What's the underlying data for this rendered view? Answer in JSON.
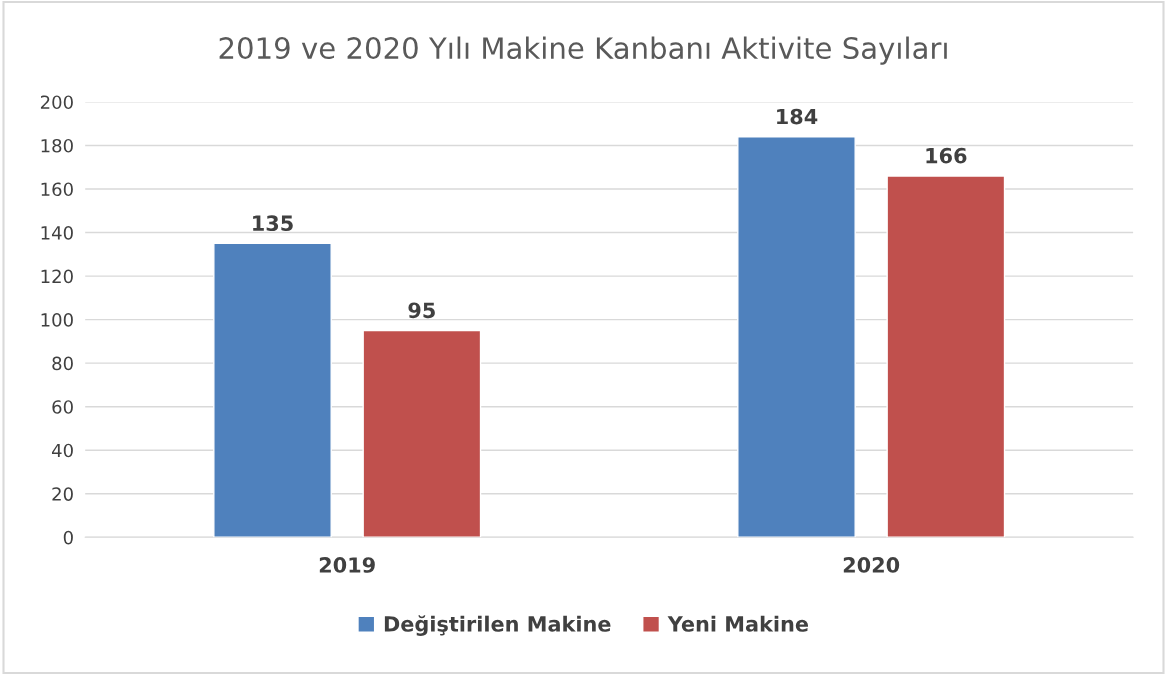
{
  "chart_data": {
    "type": "bar",
    "title": "2019 ve 2020 Yılı Makine Kanbanı Aktivite Sayıları",
    "categories": [
      "2019",
      "2020"
    ],
    "series": [
      {
        "name": "Değiştirilen Makine",
        "color": "#4f81bd",
        "values": [
          135,
          184
        ]
      },
      {
        "name": "Yeni Makine",
        "color": "#c0504d",
        "values": [
          95,
          166
        ]
      }
    ],
    "ylim": [
      0,
      200
    ],
    "yticks": [
      0,
      20,
      40,
      60,
      80,
      100,
      120,
      140,
      160,
      180,
      200
    ],
    "grid": "y",
    "legend": "bottom",
    "data_labels": true
  }
}
